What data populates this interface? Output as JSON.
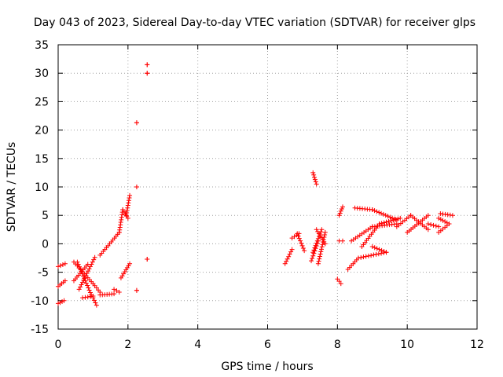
{
  "chart_data": {
    "type": "scatter",
    "title": "Day 043 of 2023, Sidereal Day-to-day VTEC variation (SDTVAR) for receiver glps",
    "xlabel": "GPS time / hours",
    "ylabel": "SDTVAR / TECUs",
    "xlim": [
      0,
      12
    ],
    "ylim": [
      -15,
      35
    ],
    "xticks": [
      0,
      2,
      4,
      6,
      8,
      10,
      12
    ],
    "xtick_labels": [
      "0",
      "2",
      "4",
      "6",
      "8",
      "10",
      "12"
    ],
    "yticks": [
      -15,
      -10,
      -5,
      0,
      5,
      10,
      15,
      20,
      25,
      30,
      35
    ],
    "ytick_labels": [
      "-15",
      "-10",
      "-5",
      "0",
      "5",
      "10",
      "15",
      "20",
      "25",
      "30",
      "35"
    ],
    "grid": true,
    "marker": "+",
    "color": "#ff0000",
    "segments": [
      {
        "x": [
          0.0,
          0.17
        ],
        "y": [
          -10.5,
          -10.0
        ]
      },
      {
        "x": [
          0.0,
          0.2
        ],
        "y": [
          -7.5,
          -6.5
        ]
      },
      {
        "x": [
          0.0,
          0.2
        ],
        "y": [
          -4.0,
          -3.5
        ]
      },
      {
        "x": [
          0.45,
          1.0
        ],
        "y": [
          -3.2,
          -7.0
        ]
      },
      {
        "x": [
          0.45,
          0.85
        ],
        "y": [
          -6.5,
          -3.6
        ]
      },
      {
        "x": [
          0.55,
          0.95
        ],
        "y": [
          -3.2,
          -9.0
        ]
      },
      {
        "x": [
          0.6,
          1.05
        ],
        "y": [
          -8.0,
          -2.4
        ]
      },
      {
        "x": [
          0.7,
          1.0
        ],
        "y": [
          -9.5,
          -9.2
        ]
      },
      {
        "x": [
          1.0,
          1.1
        ],
        "y": [
          -9.5,
          -10.8
        ]
      },
      {
        "x": [
          1.0,
          1.2
        ],
        "y": [
          -7.0,
          -8.5
        ]
      },
      {
        "x": [
          1.2,
          1.6
        ],
        "y": [
          -9.0,
          -8.8
        ]
      },
      {
        "x": [
          1.6,
          1.75
        ],
        "y": [
          -8.0,
          -8.5
        ]
      },
      {
        "x": [
          1.2,
          1.75
        ],
        "y": [
          -2.0,
          2.0
        ]
      },
      {
        "x": [
          1.75,
          1.85
        ],
        "y": [
          2.0,
          6.0
        ]
      },
      {
        "x": [
          1.85,
          2.0
        ],
        "y": [
          6.0,
          4.5
        ]
      },
      {
        "x": [
          1.95,
          2.05
        ],
        "y": [
          5.0,
          8.5
        ]
      },
      {
        "x": [
          1.8,
          2.05
        ],
        "y": [
          -6.0,
          -3.5
        ]
      },
      {
        "x": [
          2.25,
          2.25
        ],
        "y": [
          21.3,
          21.3
        ]
      },
      {
        "x": [
          2.25,
          2.25
        ],
        "y": [
          10.0,
          10.0
        ]
      },
      {
        "x": [
          2.25,
          2.25
        ],
        "y": [
          -8.2,
          -8.2
        ]
      },
      {
        "x": [
          2.55,
          2.55
        ],
        "y": [
          31.5,
          31.5
        ]
      },
      {
        "x": [
          2.55,
          2.55
        ],
        "y": [
          30.0,
          30.0
        ]
      },
      {
        "x": [
          2.55,
          2.55
        ],
        "y": [
          -2.7,
          -2.7
        ]
      },
      {
        "x": [
          6.5,
          6.7
        ],
        "y": [
          -3.5,
          -1.0
        ]
      },
      {
        "x": [
          6.7,
          6.9
        ],
        "y": [
          1.0,
          1.8
        ]
      },
      {
        "x": [
          6.85,
          7.05
        ],
        "y": [
          1.8,
          -1.2
        ]
      },
      {
        "x": [
          7.3,
          7.4
        ],
        "y": [
          12.5,
          10.5
        ]
      },
      {
        "x": [
          7.25,
          7.45
        ],
        "y": [
          -3.0,
          0.5
        ]
      },
      {
        "x": [
          7.3,
          7.55
        ],
        "y": [
          -1.5,
          2.5
        ]
      },
      {
        "x": [
          7.4,
          7.65
        ],
        "y": [
          2.5,
          0.0
        ]
      },
      {
        "x": [
          7.45,
          7.65
        ],
        "y": [
          -3.5,
          2.0
        ]
      },
      {
        "x": [
          8.0,
          8.1
        ],
        "y": [
          -6.2,
          -7.0
        ]
      },
      {
        "x": [
          8.05,
          8.15
        ],
        "y": [
          0.5,
          0.5
        ]
      },
      {
        "x": [
          8.05,
          8.15
        ],
        "y": [
          5.0,
          6.5
        ]
      },
      {
        "x": [
          8.3,
          8.6
        ],
        "y": [
          -4.5,
          -2.5
        ]
      },
      {
        "x": [
          8.6,
          9.4
        ],
        "y": [
          -2.5,
          -1.5
        ]
      },
      {
        "x": [
          9.0,
          9.4
        ],
        "y": [
          -0.5,
          -1.5
        ]
      },
      {
        "x": [
          8.5,
          9.0
        ],
        "y": [
          6.3,
          6.0
        ]
      },
      {
        "x": [
          9.0,
          9.7
        ],
        "y": [
          6.0,
          4.2
        ]
      },
      {
        "x": [
          8.7,
          9.2
        ],
        "y": [
          -0.5,
          3.5
        ]
      },
      {
        "x": [
          9.2,
          9.8
        ],
        "y": [
          3.5,
          4.5
        ]
      },
      {
        "x": [
          8.4,
          9.0
        ],
        "y": [
          0.5,
          3.0
        ]
      },
      {
        "x": [
          9.0,
          9.7
        ],
        "y": [
          3.0,
          3.5
        ]
      },
      {
        "x": [
          9.7,
          10.1
        ],
        "y": [
          3.0,
          5.0
        ]
      },
      {
        "x": [
          10.0,
          10.6
        ],
        "y": [
          2.0,
          5.0
        ]
      },
      {
        "x": [
          10.1,
          10.6
        ],
        "y": [
          5.0,
          2.5
        ]
      },
      {
        "x": [
          10.6,
          10.9
        ],
        "y": [
          3.5,
          3.0
        ]
      },
      {
        "x": [
          10.9,
          11.2
        ],
        "y": [
          4.5,
          3.5
        ]
      },
      {
        "x": [
          10.9,
          11.2
        ],
        "y": [
          2.0,
          3.5
        ]
      },
      {
        "x": [
          10.95,
          11.3
        ],
        "y": [
          5.3,
          5.0
        ]
      }
    ]
  }
}
